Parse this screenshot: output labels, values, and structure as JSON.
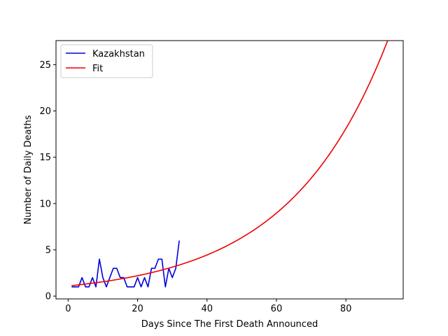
{
  "chart_data": {
    "type": "line",
    "title": "",
    "xlabel": "Days Since The First Death Announced",
    "ylabel": "Number of Daily Deaths",
    "xlim": [
      -3.5,
      96.5
    ],
    "ylim": [
      -0.3,
      27.6
    ],
    "xticks": [
      0,
      20,
      40,
      60,
      80
    ],
    "yticks": [
      0,
      5,
      10,
      15,
      20,
      25
    ],
    "grid": false,
    "legend_position": "top-left",
    "series": [
      {
        "name": "Kazakhstan",
        "color": "#0000dd",
        "x": [
          1,
          2,
          3,
          4,
          5,
          6,
          7,
          8,
          9,
          10,
          11,
          12,
          13,
          14,
          15,
          16,
          17,
          18,
          19,
          20,
          21,
          22,
          23,
          24,
          25,
          26,
          27,
          28,
          29,
          30,
          31,
          32
        ],
        "y": [
          1,
          1,
          1,
          2,
          1,
          1,
          2,
          1,
          4,
          2,
          1,
          2,
          3,
          3,
          2,
          2,
          1,
          1,
          1,
          2,
          1,
          2,
          1,
          3,
          3,
          4,
          4,
          1,
          3,
          2,
          3,
          6
        ]
      },
      {
        "name": "Fit",
        "color": "#ee0000",
        "model": "exponential",
        "x_range": [
          1,
          92
        ],
        "a": 1.092,
        "b": 0.0351
      }
    ]
  }
}
